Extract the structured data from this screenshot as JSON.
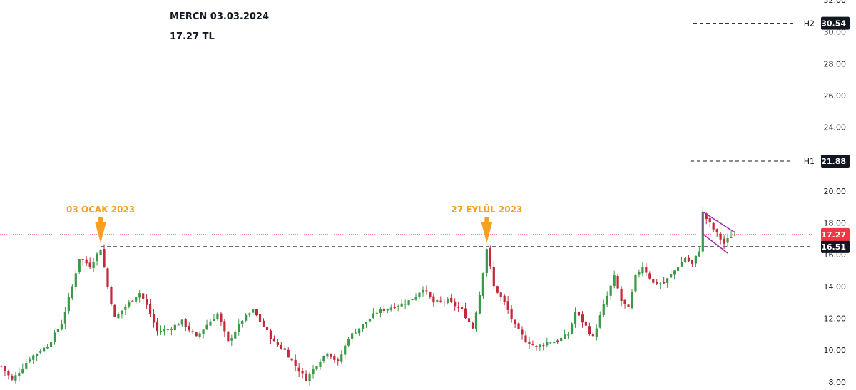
{
  "header": {
    "title": "MERCN 03.03.2024",
    "price": "17.27 TL"
  },
  "colors": {
    "up": "#3a9a47",
    "down": "#c2293b",
    "price_line": "#f23645",
    "level_line": "#131722",
    "annotation": "#f5a023",
    "channel": "#9c27b0",
    "tag_bg": "#131722"
  },
  "chart_data": {
    "type": "candlestick",
    "y_axis": {
      "min": 7.5,
      "max": 32,
      "ticks": [
        "8.00",
        "10.00",
        "12.00",
        "14.00",
        "16.00",
        "18.00",
        "20.00",
        "24.00",
        "26.00",
        "28.00",
        "30.00",
        "32.00"
      ]
    },
    "current_price": {
      "value": 17.27,
      "label": "17.27"
    },
    "levels": [
      {
        "name": "H2",
        "value": 30.54,
        "label": "30.54"
      },
      {
        "name": "H1",
        "value": 21.88,
        "label": "21.88"
      },
      {
        "name": "",
        "value": 16.51,
        "label": "16.51"
      }
    ],
    "annotations": [
      {
        "text": "03 OCAK 2023",
        "index": 28,
        "price": 16.51
      },
      {
        "text": "27 EYLÜL 2023",
        "index": 137,
        "price": 16.51
      }
    ],
    "channel": {
      "upper": [
        {
          "index": 198,
          "price": 18.7
        },
        {
          "index": 207,
          "price": 17.4
        }
      ],
      "lower": [
        {
          "index": 198,
          "price": 17.3
        },
        {
          "index": 205,
          "price": 16.1
        }
      ]
    },
    "close_path": [
      [
        0,
        9.0
      ],
      [
        3,
        8.1
      ],
      [
        8,
        9.5
      ],
      [
        13,
        10.3
      ],
      [
        17,
        11.7
      ],
      [
        20,
        14.0
      ],
      [
        22,
        15.8
      ],
      [
        25,
        15.3
      ],
      [
        28,
        16.4
      ],
      [
        30,
        14.0
      ],
      [
        32,
        12.0
      ],
      [
        36,
        13.0
      ],
      [
        39,
        13.6
      ],
      [
        41,
        12.8
      ],
      [
        44,
        11.2
      ],
      [
        47,
        11.3
      ],
      [
        51,
        11.8
      ],
      [
        55,
        10.8
      ],
      [
        58,
        11.6
      ],
      [
        61,
        12.3
      ],
      [
        64,
        10.5
      ],
      [
        68,
        11.9
      ],
      [
        71,
        12.5
      ],
      [
        74,
        11.5
      ],
      [
        77,
        10.5
      ],
      [
        80,
        10.0
      ],
      [
        83,
        9.0
      ],
      [
        86,
        8.2
      ],
      [
        89,
        9.1
      ],
      [
        92,
        9.9
      ],
      [
        95,
        9.2
      ],
      [
        98,
        10.8
      ],
      [
        102,
        11.6
      ],
      [
        106,
        12.4
      ],
      [
        110,
        12.7
      ],
      [
        113,
        12.9
      ],
      [
        116,
        13.2
      ],
      [
        119,
        13.9
      ],
      [
        122,
        13.0
      ],
      [
        126,
        13.1
      ],
      [
        130,
        12.5
      ],
      [
        133,
        11.4
      ],
      [
        135,
        13.5
      ],
      [
        137,
        16.4
      ],
      [
        139,
        14.0
      ],
      [
        142,
        13.0
      ],
      [
        145,
        11.5
      ],
      [
        148,
        10.6
      ],
      [
        151,
        10.2
      ],
      [
        154,
        10.5
      ],
      [
        157,
        10.6
      ],
      [
        160,
        11.0
      ],
      [
        162,
        12.4
      ],
      [
        165,
        11.5
      ],
      [
        167,
        10.8
      ],
      [
        170,
        12.8
      ],
      [
        173,
        14.6
      ],
      [
        175,
        13.1
      ],
      [
        177,
        12.6
      ],
      [
        179,
        14.6
      ],
      [
        181,
        15.3
      ],
      [
        184,
        14.2
      ],
      [
        187,
        14.2
      ],
      [
        190,
        15.0
      ],
      [
        193,
        15.8
      ],
      [
        195,
        15.4
      ],
      [
        197,
        16.3
      ],
      [
        198,
        18.6
      ],
      [
        201,
        17.6
      ],
      [
        204,
        16.7
      ],
      [
        206,
        17.2
      ],
      [
        207,
        17.27
      ]
    ],
    "x_count": 208
  }
}
